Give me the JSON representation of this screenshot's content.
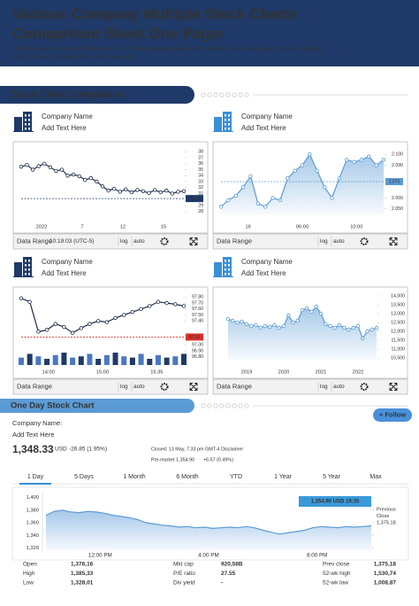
{
  "header": {
    "title_lines": [
      "Various Company Multiple Stock Charts",
      "Comparison Sheet One Pager"
    ],
    "subtitle_lines": [
      "This one pager shows the multiple stock charts with company details which includes stock value, graph details, company",
      "listed in market, 5 years stock, market cap, etc."
    ]
  },
  "section_title": "Stock Chart Comparison",
  "panels": [
    {
      "company": "Company Name",
      "text": "Add Text Here",
      "chart": {
        "type": "line",
        "markers": true,
        "area": false,
        "color": "#1f2d4d",
        "x_labels": [
          "2022",
          "7",
          "12",
          "15"
        ],
        "ylim": [
          27.5,
          38.5
        ],
        "yticks": [
          38,
          37,
          36,
          35,
          34,
          33,
          32,
          31,
          29,
          28
        ],
        "ref": {
          "value": 30.16,
          "label": "30.16",
          "color": "#1f3a68"
        },
        "values": [
          35.5,
          35.8,
          35.0,
          35.6,
          36.0,
          35.4,
          34.8,
          35.0,
          34.0,
          34.2,
          33.9,
          33.3,
          33.6,
          33.0,
          32.2,
          31.5,
          31.8,
          31.3,
          31.7,
          31.2,
          31.6,
          31.4,
          31.1,
          31.6,
          31.2,
          31.5,
          31.0,
          31.3,
          31.4
        ]
      },
      "footer": {
        "range": "Data Range",
        "time": "10:19:03 (UTC-5)",
        "log": "log",
        "auto": "auto"
      }
    },
    {
      "company": "Company Name",
      "text": "Add Text Here",
      "chart": {
        "type": "line",
        "markers": true,
        "area": true,
        "color": "#5b9bd5",
        "x_labels": [
          "16",
          "06:00",
          "10:00"
        ],
        "ylim": [
          2.045,
          2.105
        ],
        "yticks": [
          {
            "value": 2.1,
            "label": "2.100"
          },
          {
            "value": 2.09,
            "label": "2.090"
          },
          {
            "value": 2.06,
            "label": "2.060"
          },
          {
            "value": 2.05,
            "label": "2.050"
          }
        ],
        "ref": {
          "value": 2.075,
          "label": "2.075",
          "color": "#5b9bd5"
        },
        "values": [
          2.052,
          2.058,
          2.062,
          2.07,
          2.08,
          2.055,
          2.052,
          2.06,
          2.058,
          2.078,
          2.085,
          2.09,
          2.1,
          2.085,
          2.07,
          2.06,
          2.078,
          2.095,
          2.093,
          2.095,
          2.098,
          2.09,
          2.095
        ]
      },
      "footer": {
        "range": "Data Range",
        "log": "log",
        "auto": "auto"
      }
    },
    {
      "company": "Company Name",
      "text": "Add Text Here",
      "chart": {
        "type": "line",
        "markers": true,
        "area": false,
        "color": "#1f2d4d",
        "x_labels": [
          "14:00",
          "15:00",
          "15:35"
        ],
        "ylim": [
          96.75,
          97.85
        ],
        "yticks": [
          {
            "value": 97.8,
            "label": "97.80"
          },
          {
            "value": 97.7,
            "label": "97.70"
          },
          {
            "value": 97.6,
            "label": "97.60"
          },
          {
            "value": 97.5,
            "label": "97.50"
          },
          {
            "value": 97.4,
            "label": "97.40"
          },
          {
            "value": 97.1,
            "label": "97.10"
          },
          {
            "value": 97.0,
            "label": "97.00"
          },
          {
            "value": 96.9,
            "label": "96.90"
          },
          {
            "value": 96.8,
            "label": "96.80"
          }
        ],
        "ref": {
          "value": 97.13,
          "label": "97.13",
          "color": "#d9302c"
        },
        "values": [
          97.78,
          97.72,
          97.22,
          97.25,
          97.35,
          97.3,
          97.2,
          97.28,
          97.35,
          97.4,
          97.38,
          97.45,
          97.5,
          97.55,
          97.6,
          97.65,
          97.72,
          97.7,
          97.68,
          97.65
        ],
        "volume": [
          6,
          9,
          7,
          5,
          8,
          10,
          6,
          7,
          9,
          5,
          8,
          10,
          7,
          6,
          9,
          5,
          8,
          6,
          7,
          9
        ]
      },
      "footer": {
        "range": "Data Range",
        "log": "log",
        "auto": "auto"
      }
    },
    {
      "company": "Company Name",
      "text": "Add Text Here",
      "chart": {
        "type": "line",
        "markers": true,
        "area": true,
        "color": "#5b9bd5",
        "x_labels": [
          "2019",
          "2020",
          "2021",
          "2022"
        ],
        "ylim": [
          10400,
          14100
        ],
        "yticks": [
          {
            "value": 14000,
            "label": "14,000"
          },
          {
            "value": 13500,
            "label": "13,500"
          },
          {
            "value": 13000,
            "label": "13,000"
          },
          {
            "value": 12500,
            "label": "12,500"
          },
          {
            "value": 12000,
            "label": "12,000"
          },
          {
            "value": 11500,
            "label": "11,500"
          },
          {
            "value": 11000,
            "label": "11,000"
          },
          {
            "value": 10500,
            "label": "10,500"
          }
        ],
        "values": [
          12700,
          12600,
          12500,
          12550,
          12400,
          12300,
          12350,
          12200,
          12300,
          12250,
          12350,
          12200,
          12300,
          12900,
          12500,
          12600,
          13200,
          13300,
          13100,
          13400,
          13000,
          12400,
          12300,
          12200,
          12350,
          12200,
          12100,
          12200,
          12300,
          11600,
          12000,
          12100,
          12200
        ]
      },
      "footer": {
        "range": "Data Range",
        "log": "log",
        "auto": "auto"
      }
    }
  ],
  "one_day": {
    "title": "One Day Stock Chart",
    "follow": "+ Follow",
    "company": "Company Name:",
    "text": "Add Text Here",
    "price": "1,348.33",
    "currency": "USD",
    "change": "-26.85 (1.95%)",
    "closed": "Closed: 13 May, 7:33 pm GMT-4 Disclaimer",
    "premarket": "Pre-market 1,354.90",
    "pre_change": "+6.57 (0.49%)",
    "tabs": [
      "1 Day",
      "5 Days",
      "1 Month",
      "6 Month",
      "YTD",
      "1 Year",
      "5 Year",
      "Max"
    ],
    "chart": {
      "type": "line",
      "area": true,
      "color": "#5b9bd5",
      "x_labels": [
        "12:00 PM",
        "4:00 PM",
        "8:00 PM"
      ],
      "ylim": [
        1315,
        1405
      ],
      "yticks": [
        {
          "value": 1400,
          "label": "1,400"
        },
        {
          "value": 1380,
          "label": "1,380"
        },
        {
          "value": 1360,
          "label": "1,360"
        },
        {
          "value": 1340,
          "label": "1,340"
        },
        {
          "value": 1320,
          "label": "1,320"
        }
      ],
      "values": [
        1372,
        1378,
        1380,
        1377,
        1376,
        1378,
        1377,
        1375,
        1372,
        1370,
        1368,
        1365,
        1360,
        1358,
        1356,
        1355,
        1353,
        1354,
        1352,
        1353,
        1351,
        1352,
        1353,
        1352,
        1354,
        1352,
        1348,
        1345,
        1342,
        1344,
        1346,
        1348,
        1352,
        1354,
        1353,
        1352,
        1354,
        1353,
        1354,
        1355
      ]
    },
    "callout": "1,354.90 USD 19:35",
    "prev_close_lines": [
      "Previous",
      "Close",
      "1,375,18"
    ],
    "stats": [
      [
        "Open",
        "1,376,16"
      ],
      [
        "High",
        "1,385,33"
      ],
      [
        "Low",
        "1,328,01"
      ],
      [
        "Mkt cap",
        "920,58B"
      ],
      [
        "P/E ratio",
        "27.55"
      ],
      [
        "Div yield",
        "-"
      ],
      [
        "Prev close",
        "1,375,18"
      ],
      [
        "52-wk high",
        "1,530,74"
      ],
      [
        "52-wk low",
        "1,008,87"
      ]
    ]
  }
}
